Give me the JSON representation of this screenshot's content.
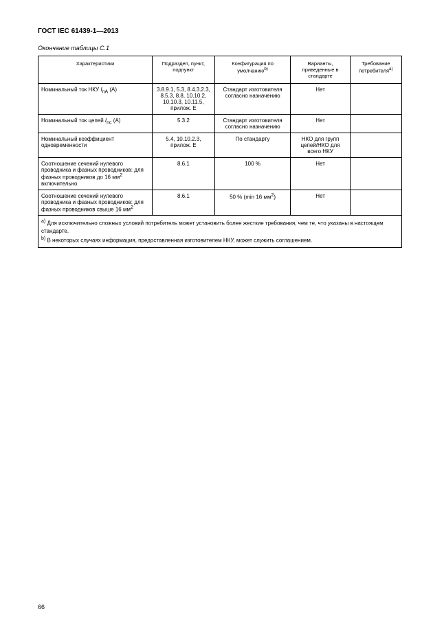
{
  "document": {
    "header": "ГОСТ IEC 61439-1—2013",
    "caption": "Окончание таблицы С.1",
    "page_number": "66"
  },
  "table": {
    "columns": [
      "Характеристики",
      "Подраздел, пункт, подпункт",
      "Конфигурация по умолчанию",
      "Варианты, приведенные в стандарте",
      "Требование потребителя"
    ],
    "col_super_b": "b)",
    "col_super_a": "a)",
    "rows": [
      {
        "c1_pre": "Номинальный ток НКУ ",
        "c1_italic": "I",
        "c1_sub": "nA",
        "c1_post": " (A)",
        "c2": "3.8.9.1, 5.3, 8.4.3.2.3, 8.5.3, 8.8, 10.10.2, 10.10.3, 10.11.5, прилож. E",
        "c3": "Стандарт изготовителя согласно назначению",
        "c4": "Нет",
        "c5": ""
      },
      {
        "c1_pre": "Номинальный ток цепей ",
        "c1_italic": "I",
        "c1_sub": "nc",
        "c1_post": " (A)",
        "c2": "5.3.2",
        "c3": "Стандарт изготовителя согласно назначению",
        "c4": "Нет",
        "c5": ""
      },
      {
        "c1_pre": "Номинальный коэффициент одновременности",
        "c1_italic": "",
        "c1_sub": "",
        "c1_post": "",
        "c2": "5.4, 10.10.2.3, прилож. E",
        "c3": "По стандарту",
        "c4": "НКО для групп цепей/НКО для всего НКУ",
        "c5": ""
      },
      {
        "c1_pre": "Соотношение сечений нулевого проводника и фазных проводников: для фазных проводников до 16 мм",
        "c1_italic": "",
        "c1_sub": "",
        "c1_post_sup": "2",
        "c1_post2": " включительно",
        "c2": "8.6.1",
        "c3": "100 %",
        "c4": "Нет",
        "c5": ""
      },
      {
        "c1_pre": "Соотношение сечений нулевого проводника и фазных проводников: для фазных проводников свыше 16 мм",
        "c1_italic": "",
        "c1_sub": "",
        "c1_post_sup": "2",
        "c1_post2": "",
        "c2": "8.6.1",
        "c3_pre": "50 % (min 16 мм",
        "c3_sup": "2",
        "c3_post": ")",
        "c4": "Нет",
        "c5": ""
      }
    ],
    "footnote_a_sup": "a)",
    "footnote_a": " Для исключительно сложных условий потребитель может установить более жесткие требования, чем те, что указаны в настоящем стандарте.",
    "footnote_b_sup": "b)",
    "footnote_b": " В некоторых случаях информация, предоставленная изготовителем НКУ, может служить соглашением."
  }
}
